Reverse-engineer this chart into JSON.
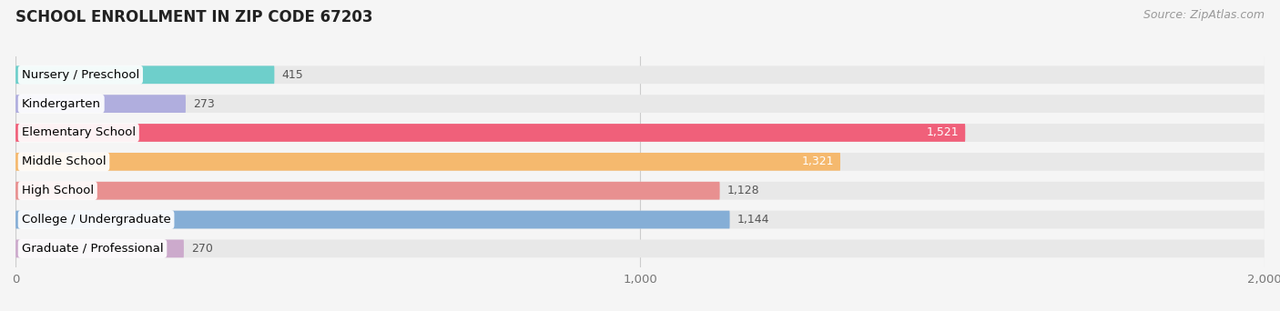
{
  "title": "SCHOOL ENROLLMENT IN ZIP CODE 67203",
  "source": "Source: ZipAtlas.com",
  "categories": [
    "Nursery / Preschool",
    "Kindergarten",
    "Elementary School",
    "Middle School",
    "High School",
    "College / Undergraduate",
    "Graduate / Professional"
  ],
  "values": [
    415,
    273,
    1521,
    1321,
    1128,
    1144,
    270
  ],
  "bar_colors": [
    "#6ecfcb",
    "#b0aede",
    "#f0607a",
    "#f5b96e",
    "#e89090",
    "#85aed6",
    "#ccaacc"
  ],
  "bar_bg_color": "#e8e8e8",
  "xlim": [
    0,
    2000
  ],
  "xticks": [
    0,
    1000,
    2000
  ],
  "title_fontsize": 12,
  "source_fontsize": 9,
  "label_fontsize": 9.5,
  "value_fontsize": 9,
  "bar_height": 0.62,
  "background_color": "#f5f5f5",
  "white_value_threshold": 1300,
  "value_color_dark": "#555555",
  "value_color_light": "white"
}
